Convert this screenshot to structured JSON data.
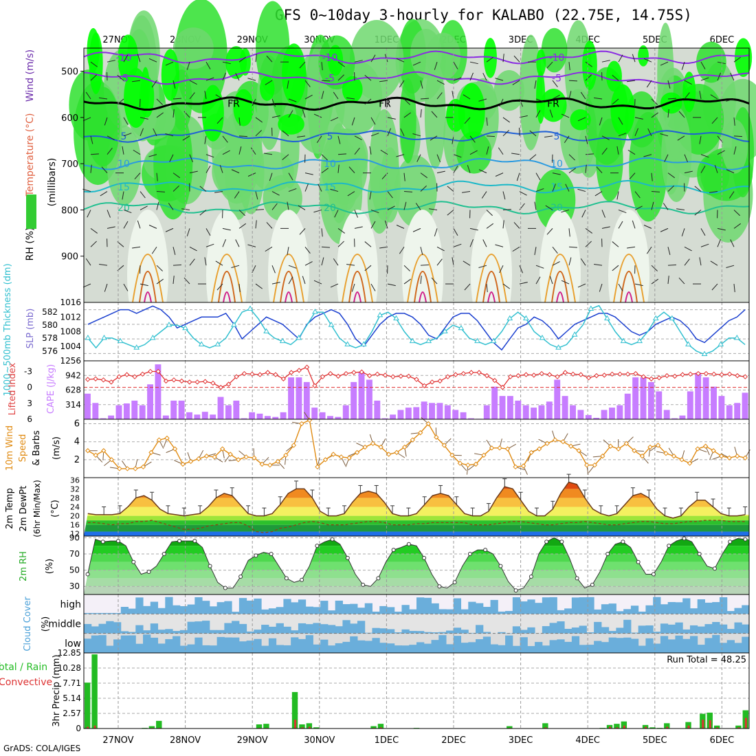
{
  "title": "GFS 0~10day 3-hourly for KALABO (22.75E, 14.75S)",
  "credit": "GrADS: COLA/IGES",
  "chart_data": [
    {
      "type": "heatmap",
      "panel": "upper-air",
      "x_dates": [
        "27NOV",
        "28NOV",
        "29NOV",
        "30NOV",
        "1DEC",
        "2DEC",
        "3DEC",
        "4DEC",
        "5DEC",
        "6DEC"
      ],
      "ylabel": "(millibars)",
      "y_ticks": [
        500,
        600,
        700,
        800,
        900
      ],
      "ylim": [
        1000,
        450
      ],
      "legend_labels": [
        "RH (%)",
        "Temperature (°C)",
        "Wind (m/s)"
      ],
      "temperature_contours": [
        {
          "label": "-10",
          "level_mb": 470,
          "color": "#8a2be2"
        },
        {
          "label": "-5",
          "level_mb": 515,
          "color": "#8a2be2"
        },
        {
          "label": "FR",
          "level_mb": 570,
          "color": "#000000"
        },
        {
          "label": "5",
          "level_mb": 640,
          "color": "#1e5fd6"
        },
        {
          "label": "10",
          "level_mb": 700,
          "color": "#2a9ae0"
        },
        {
          "label": "15",
          "level_mb": 750,
          "color": "#1cb8c8"
        },
        {
          "label": "20",
          "level_mb": 795,
          "color": "#20c090"
        }
      ]
    },
    {
      "type": "line",
      "panel": "pressure",
      "y_ticks_left": [
        576,
        578,
        580,
        582
      ],
      "y_ticks_right": [
        1004,
        1008,
        1012,
        1016
      ],
      "ylabel_left": "1000~500mb Thickness (dm)",
      "ylabel_right": "SLP (mb)",
      "series": [
        {
          "name": "SLP (mb)",
          "color": "#1a3fcf",
          "values": [
            1010,
            1011,
            1012,
            1013,
            1014,
            1014,
            1013,
            1014,
            1015,
            1014,
            1012,
            1009,
            1010,
            1011,
            1012,
            1012,
            1012,
            1013,
            1010,
            1006,
            1008,
            1010,
            1012,
            1011,
            1010,
            1008,
            1006,
            1010,
            1012,
            1013,
            1014,
            1013,
            1010,
            1006,
            1004,
            1007,
            1010,
            1012,
            1013,
            1013,
            1012,
            1010,
            1007,
            1006,
            1009,
            1012,
            1013,
            1013,
            1011,
            1008,
            1005,
            1003,
            1006,
            1009,
            1010,
            1012,
            1011,
            1009,
            1006,
            1008,
            1010,
            1011,
            1012,
            1013,
            1013,
            1012,
            1010,
            1008,
            1007,
            1008,
            1010,
            1011,
            1012,
            1011,
            1009,
            1006,
            1005,
            1007,
            1009,
            1011,
            1012,
            1014
          ]
        },
        {
          "name": "Thickness (dm)",
          "color": "#2fbfcf",
          "values": [
            578,
            576.5,
            578,
            578,
            577.5,
            577,
            576.5,
            577,
            578,
            579,
            580,
            580,
            579.5,
            578,
            577,
            576.5,
            577,
            578,
            580,
            582,
            582.5,
            581,
            579,
            578,
            577.5,
            577,
            578,
            580,
            582,
            582,
            580,
            578,
            577,
            576.5,
            577,
            579,
            581.5,
            582,
            581,
            579,
            577.5,
            577,
            577.5,
            578,
            579,
            580,
            579.5,
            578,
            577.5,
            577,
            577.5,
            579,
            581,
            582,
            581,
            579,
            578,
            577,
            576.5,
            577,
            578.5,
            580,
            582.5,
            583,
            581,
            579,
            577.5,
            577,
            577.5,
            579,
            581,
            582,
            581,
            579,
            577,
            576,
            575.5,
            576,
            577,
            578,
            578,
            577
          ]
        }
      ]
    },
    {
      "type": "bar",
      "panel": "instability",
      "y_ticks_left": [
        -3,
        0,
        3,
        6
      ],
      "y_ticks_right": [
        314,
        628,
        942,
        1256
      ],
      "ylabel_left": "Lifted Index",
      "ylabel_right": "CAPE (J/kg)",
      "series": [
        {
          "name": "CAPE (J/kg)",
          "color": "#c77dff",
          "values": [
            550,
            350,
            20,
            80,
            300,
            340,
            400,
            300,
            750,
            1180,
            80,
            400,
            400,
            150,
            100,
            160,
            100,
            480,
            300,
            400,
            20,
            150,
            120,
            70,
            50,
            150,
            900,
            900,
            800,
            250,
            150,
            70,
            50,
            300,
            800,
            1010,
            850,
            400,
            20,
            100,
            200,
            250,
            260,
            380,
            350,
            350,
            300,
            200,
            150,
            20,
            10,
            300,
            700,
            500,
            500,
            400,
            300,
            250,
            300,
            380,
            850,
            500,
            300,
            200,
            90,
            30,
            200,
            250,
            300,
            550,
            900,
            900,
            800,
            600,
            200,
            20,
            80,
            600,
            1000,
            900,
            700,
            500,
            300,
            350,
            570
          ]
        },
        {
          "name": "Lifted Index",
          "color": "#e03030",
          "values": [
            -1.5,
            -1.6,
            -1.4,
            -1,
            -2,
            -2.4,
            -2,
            -2.5,
            -3,
            -3,
            -1.2,
            -1.4,
            -1.2,
            -1,
            -1,
            -1.1,
            -0.8,
            0,
            -0.6,
            -2,
            -2.6,
            -2.5,
            -2.4,
            -2.8,
            -2.4,
            -1.6,
            -2.8,
            -3.2,
            -3.8,
            -0.3,
            -2,
            -2.6,
            -2.1,
            -2.6,
            -2.8,
            -2.9,
            -2.2,
            -2.5,
            -2.3,
            -2,
            -2.1,
            -2.1,
            -1.5,
            -0.3,
            -1,
            -1.2,
            -2,
            -2.4,
            -2.6,
            -2.8,
            -2.8,
            -2.2,
            -1.3,
            0,
            -2,
            -2.2,
            -2.4,
            -2.3,
            -2.6,
            -2.4,
            -2,
            -2.8,
            -2.5,
            -2.4,
            -1.8,
            -2.2,
            -2.3,
            -2.5,
            -2.5,
            -2.5,
            -2.6,
            -2,
            -1.6,
            -1.8,
            -2.2,
            -2.1,
            -2.4,
            -2.5,
            -2.6,
            -2.6,
            -2.5,
            -2.4,
            -2.5,
            -2.2,
            -2
          ]
        }
      ]
    },
    {
      "type": "line",
      "panel": "10m-wind",
      "ylabel": "10m Wind Speed & Barbs (m/s)",
      "y_ticks": [
        2,
        4,
        6
      ],
      "ylim": [
        0,
        6.5
      ],
      "series": [
        {
          "name": "Speed (m/s)",
          "color": "#e08a10",
          "values": [
            3,
            2.5,
            3,
            2,
            1,
            1,
            1,
            1.2,
            2.8,
            4.2,
            4.4,
            3.2,
            1.5,
            1.8,
            2.1,
            2.4,
            2.3,
            3.2,
            2.6,
            2,
            2.3,
            2.2,
            1.5,
            1.4,
            1.8,
            2.5,
            3.6,
            6,
            6.4,
            1.2,
            2,
            2.6,
            2.3,
            2.2,
            2.8,
            3.4,
            3.8,
            3.4,
            2.6,
            2.8,
            3.4,
            4.2,
            5,
            6,
            4.5,
            3.6,
            2.5,
            1.6,
            1.4,
            1.5,
            2.5,
            3.3,
            3.3,
            3.2,
            1.2,
            1.3,
            2.8,
            3.2,
            3.8,
            4.2,
            4,
            3.5,
            3,
            1.4,
            1.4,
            2.4,
            3.5,
            3.2,
            3.8,
            3,
            2.4,
            3.4,
            3.6,
            2.7,
            2.4,
            2,
            1.6,
            3.2,
            3.5,
            3,
            2.4,
            2.2,
            2.4,
            2.2
          ]
        }
      ]
    },
    {
      "type": "area",
      "panel": "2m-temp",
      "ylabel": "2m Temp 2m DewPt (6hr Min/Max) (°C)",
      "y_ticks": [
        12,
        16,
        20,
        24,
        28,
        32,
        36
      ],
      "ylim": [
        11,
        37
      ],
      "series": [
        {
          "name": "2m Temp",
          "color": "#8b4513",
          "values": [
            21,
            20.5,
            20.5,
            20.5,
            21,
            24,
            28,
            29,
            27,
            23,
            21,
            20.5,
            20,
            20.5,
            21,
            24,
            28,
            30,
            29,
            25,
            21,
            20,
            20,
            21,
            25,
            30,
            32,
            32,
            28,
            22,
            20,
            20,
            21,
            26,
            30,
            31,
            30,
            26,
            21,
            20,
            20,
            21,
            25,
            29,
            30,
            29,
            25,
            21,
            20,
            20,
            22,
            28,
            33,
            32,
            27,
            22,
            20,
            20,
            23,
            30,
            35,
            34,
            28,
            23,
            21,
            20,
            21,
            25,
            29,
            30,
            28,
            23,
            20,
            19,
            20,
            24,
            27,
            27,
            24,
            21,
            20,
            20,
            20.5
          ]
        },
        {
          "name": "2m DewPt",
          "color": "#8b4513",
          "values": [
            17,
            17,
            16.5,
            16,
            16.5,
            16.5,
            17.5,
            17.5,
            18,
            17,
            16,
            15,
            14,
            14,
            14.5,
            15.5,
            16,
            16.5,
            17,
            17,
            15.5,
            13,
            12.5,
            13,
            14.5,
            15,
            16,
            17,
            17.5,
            17,
            16,
            16,
            16,
            16.5,
            17,
            17.5,
            17.5,
            17,
            16,
            16,
            16,
            16.5,
            16.5,
            17,
            17,
            17,
            17,
            17,
            16,
            16,
            16,
            16.5,
            17,
            17.5,
            17.5,
            17,
            16.5,
            16,
            16,
            16.5,
            17,
            17,
            17.5,
            17,
            16.5,
            16,
            16,
            16.5,
            17,
            17.5,
            17.5,
            17,
            16.5,
            16.5,
            17,
            17.5,
            17.5,
            18,
            18,
            18,
            17.5,
            17.5,
            17.5
          ]
        }
      ]
    },
    {
      "type": "area",
      "panel": "2m-rh",
      "ylabel": "2m RH (%)",
      "y_ticks": [
        30,
        50,
        70,
        90
      ],
      "ylim": [
        20,
        92
      ],
      "series": [
        {
          "name": "2m RH (%)",
          "color": "#1db51d",
          "values": [
            45,
            88,
            85,
            86,
            86,
            80,
            60,
            45,
            48,
            55,
            70,
            85,
            86,
            86,
            86,
            78,
            55,
            35,
            28,
            28,
            42,
            62,
            68,
            72,
            70,
            55,
            40,
            35,
            38,
            55,
            80,
            85,
            88,
            82,
            65,
            45,
            32,
            30,
            40,
            60,
            75,
            78,
            82,
            80,
            65,
            45,
            30,
            28,
            35,
            55,
            70,
            75,
            75,
            70,
            55,
            36,
            25,
            28,
            42,
            70,
            85,
            90,
            85,
            65,
            40,
            28,
            32,
            48,
            70,
            82,
            85,
            78,
            60,
            45,
            45,
            60,
            80,
            86,
            89,
            85,
            70,
            55,
            52,
            70,
            85,
            89,
            88
          ]
        }
      ]
    },
    {
      "type": "heatmap",
      "panel": "cloud-cover",
      "ylabel": "Cloud Cover (%)",
      "rows": [
        "high",
        "middle",
        "low"
      ],
      "color": "#6aaedb"
    },
    {
      "type": "bar",
      "panel": "precip",
      "ylabel": "3hr Precip (mm)",
      "legend_labels": [
        "Total / Rain",
        "Convective"
      ],
      "y_ticks": [
        0,
        2.57,
        5.14,
        7.71,
        10.28,
        12.85
      ],
      "y_tick_labels": [
        "0",
        "2.57",
        "5.14",
        "7.71",
        "10.28",
        "12.85"
      ],
      "ylim": [
        0,
        12.85
      ],
      "annotation": "Run Total = 48.25",
      "series": [
        {
          "name": "Total / Rain",
          "color": "#22bb22",
          "values": [
            7.8,
            12.6,
            0,
            0,
            0,
            0,
            0,
            0,
            0.1,
            0.4,
            1.3,
            0,
            0,
            0,
            0,
            0,
            0,
            0,
            0,
            0,
            0,
            0,
            0,
            0,
            0.7,
            0.8,
            0,
            0,
            0,
            6.2,
            0.7,
            0.9,
            0.2,
            0,
            0,
            0,
            0,
            0,
            0,
            0,
            0.4,
            0.8,
            0,
            0,
            0,
            0,
            0.1,
            0,
            0,
            0,
            0,
            0,
            0,
            0,
            0,
            0,
            0,
            0,
            0,
            0.4,
            0,
            0,
            0,
            0,
            0.9,
            0,
            0,
            0,
            0,
            0,
            0,
            0,
            0.1,
            0.6,
            0.8,
            1.2,
            0,
            0,
            0.6,
            0.2,
            0.1,
            0.9,
            0,
            0,
            1.1,
            0,
            2.5,
            2.7,
            0.5,
            0,
            0,
            0.5,
            3.1
          ]
        },
        {
          "name": "Convective",
          "color": "#dd3333",
          "values": [
            0.3,
            0.5,
            0,
            0,
            0,
            0,
            0,
            0,
            0,
            0.1,
            0.1,
            0,
            0,
            0,
            0,
            0,
            0,
            0,
            0,
            0,
            0,
            0,
            0,
            0,
            0.1,
            0.1,
            0,
            0,
            0,
            1.5,
            0.2,
            0.3,
            0,
            0,
            0,
            0,
            0,
            0,
            0,
            0,
            0.1,
            0.2,
            0,
            0,
            0,
            0,
            0,
            0,
            0,
            0,
            0,
            0,
            0,
            0,
            0,
            0,
            0,
            0,
            0,
            0.1,
            0,
            0,
            0,
            0,
            0.2,
            0,
            0,
            0,
            0,
            0,
            0,
            0,
            0,
            0.3,
            0.2,
            0.5,
            0,
            0,
            0.3,
            0,
            0,
            0.3,
            0,
            0,
            0.5,
            0,
            1.5,
            1.4,
            0.2,
            0,
            0,
            0.2,
            1.8
          ]
        }
      ]
    }
  ]
}
